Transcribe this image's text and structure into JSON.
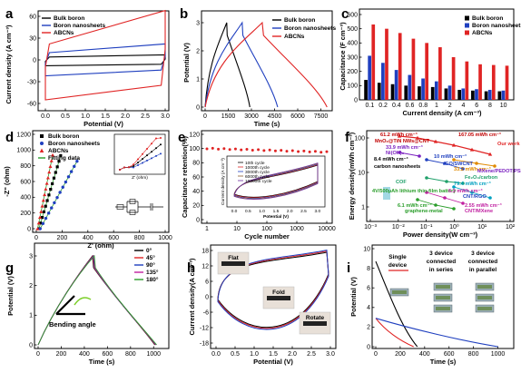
{
  "figure": {
    "panels": [
      "a",
      "b",
      "c",
      "d",
      "e",
      "f",
      "g",
      "h",
      "i"
    ]
  },
  "colors": {
    "bulk": "#000000",
    "nanosheets": "#1f3fbf",
    "abcn": "#e02424"
  },
  "chart_data": [
    {
      "panel": "a",
      "type": "line",
      "xlabel": "Potential (V)",
      "ylabel": "Current density (A cm⁻³)",
      "xlim": [
        0,
        3.0
      ],
      "ylim": [
        -60,
        60
      ],
      "xticks": [
        "0.0",
        "0.5",
        "1.0",
        "1.5",
        "2.0",
        "2.5",
        "3.0"
      ],
      "yticks": [
        "-60",
        "-30",
        "0",
        "30",
        "60"
      ],
      "legend": [
        "Bulk boron",
        "Boron nanosheets",
        "ABCNs"
      ],
      "series": [
        {
          "name": "Bulk boron",
          "upper": [
            [
              0,
              -2
            ],
            [
              0.1,
              4
            ],
            [
              3.0,
              7
            ]
          ],
          "lower": [
            [
              3.0,
              1
            ],
            [
              2.9,
              -6
            ],
            [
              0,
              -8
            ]
          ]
        },
        {
          "name": "Boron nanosheets",
          "upper": [
            [
              0,
              -5
            ],
            [
              0.1,
              10
            ],
            [
              3.0,
              22
            ]
          ],
          "lower": [
            [
              3.0,
              5
            ],
            [
              2.9,
              -14
            ],
            [
              0,
              -22
            ]
          ]
        },
        {
          "name": "ABCNs",
          "upper": [
            [
              0,
              -10
            ],
            [
              0.1,
              22
            ],
            [
              3.0,
              68
            ]
          ],
          "lower": [
            [
              3.0,
              15
            ],
            [
              2.9,
              -35
            ],
            [
              0,
              -55
            ]
          ]
        }
      ]
    },
    {
      "panel": "b",
      "type": "line",
      "xlabel": "Time (s)",
      "ylabel": "Potential (V)",
      "xlim": [
        0,
        8000
      ],
      "ylim": [
        0,
        3.2
      ],
      "xticks": [
        "0",
        "1500",
        "3000",
        "4500",
        "6000",
        "7500"
      ],
      "yticks": [
        "0",
        "1",
        "2",
        "3"
      ],
      "legend": [
        "Bulk boron",
        "Boron nanosheets",
        "ABCNs"
      ],
      "series": [
        {
          "name": "Bulk boron",
          "peak": [
            1400,
            3.0
          ],
          "end": [
            2900,
            0
          ]
        },
        {
          "name": "Boron nanosheets",
          "peak": [
            2400,
            3.0
          ],
          "end": [
            4700,
            0
          ]
        },
        {
          "name": "ABCNs",
          "peak": [
            3700,
            3.0
          ],
          "end": [
            7900,
            0
          ]
        }
      ]
    },
    {
      "panel": "c",
      "type": "bar",
      "xlabel": "Current density (A cm⁻³)",
      "ylabel": "Capacitance (F cm⁻³)",
      "ylim": [
        0,
        600
      ],
      "yticks": [
        "0",
        "100",
        "200",
        "300",
        "400",
        "500",
        "600"
      ],
      "categories": [
        "0.1",
        "0.2",
        "0.4",
        "0.6",
        "0.8",
        "1",
        "2",
        "4",
        "6",
        "8",
        "10"
      ],
      "legend": [
        "Bulk boron",
        "Boron nanosheets",
        "ABCNs"
      ],
      "series": [
        {
          "name": "Bulk boron",
          "values": [
            140,
            120,
            110,
            100,
            95,
            90,
            80,
            70,
            65,
            60,
            60
          ]
        },
        {
          "name": "Boron nanosheets",
          "values": [
            310,
            260,
            210,
            175,
            150,
            130,
            100,
            80,
            75,
            70,
            65
          ]
        },
        {
          "name": "ABCNs",
          "values": [
            530,
            500,
            470,
            430,
            400,
            370,
            300,
            270,
            250,
            245,
            240
          ]
        }
      ]
    },
    {
      "panel": "d",
      "type": "scatter",
      "xlabel": "Z' (ohm)",
      "ylabel": "-Z\" (ohm)",
      "xlim": [
        0,
        1000
      ],
      "ylim": [
        0,
        1200
      ],
      "xticks": [
        "0",
        "200",
        "400",
        "600",
        "800",
        "1000"
      ],
      "yticks": [
        "0",
        "200",
        "400",
        "600",
        "800",
        "1000",
        "1200"
      ],
      "legend": [
        "Bulk boron",
        "Boron nanosheets",
        "ABCNs",
        "Fitting data"
      ],
      "inset_xlabel": "Z' (ohm)",
      "inset_ylabel": "-Z\" (ohm)"
    },
    {
      "panel": "e",
      "type": "line",
      "xlabel": "Cycle number",
      "ylabel": "Capacitance retention(%)",
      "xlim": [
        1,
        10000
      ],
      "ylim": [
        0,
        120
      ],
      "xscale": "log",
      "xticks": [
        "1",
        "10",
        "100",
        "1000",
        "10000"
      ],
      "yticks": [
        "0",
        "20",
        "40",
        "60",
        "80",
        "100",
        "120"
      ],
      "retention": [
        [
          1,
          100
        ],
        [
          10,
          98
        ],
        [
          100,
          97
        ],
        [
          1000,
          96
        ],
        [
          10000,
          95
        ]
      ],
      "inset_legend": [
        "10th cycle",
        "1000th cycle",
        "3000th cycle",
        "6000th cycle",
        "10000th cycle"
      ],
      "inset_xlabel": "Potential (V)",
      "inset_ylabel": "Current density (A cm⁻³)",
      "inset_xticks": [
        "0.0",
        "0.5",
        "1.0",
        "1.5",
        "2.0",
        "2.5",
        "3.0"
      ]
    },
    {
      "panel": "f",
      "type": "scatter",
      "xlabel": "Power density(W cm⁻³)",
      "ylabel": "Energy density(mWh cm⁻³)",
      "xscale": "log",
      "yscale": "log",
      "xticks": [
        "10⁻³",
        "10⁻²",
        "10⁻¹",
        "10⁰",
        "10¹",
        "10²"
      ],
      "yticks": [
        "1",
        "10",
        "100"
      ],
      "annotations": [
        "61.2 mWh cm⁻³",
        "167.05 mWh cm⁻³",
        "Our work",
        "MnO₂@TiN NWs@CNT",
        "33.9 mWh cm⁻³",
        "Ni(OH)₂",
        "8.4 mWh cm⁻³",
        "10 mWh cm⁻³",
        "rGO/SWCNT",
        "33.2 mWh cm⁻³",
        "MXene/PEDOT:PSS",
        "carbon nanosheets",
        "Fe₂O₃/carbon",
        "79.4 mWh cm⁻³",
        "COF",
        "4V/500μAh lithium thin-film battery",
        "6.3 mWh cm⁻³",
        "CNT/RGO",
        "6.1 mWh cm⁻³",
        "graphene-metal",
        "2.55 mWh cm⁻³",
        "CNT/MXene"
      ]
    },
    {
      "panel": "g",
      "type": "line",
      "xlabel": "Time (s)",
      "ylabel": "Potential (V)",
      "xlim": [
        0,
        1100
      ],
      "ylim": [
        0,
        3.2
      ],
      "xticks": [
        "0",
        "200",
        "400",
        "600",
        "800",
        "1000"
      ],
      "yticks": [
        "0",
        "1",
        "2",
        "3"
      ],
      "legend": [
        "0°",
        "45°",
        "90°",
        "135°",
        "180°"
      ],
      "annotation": "Bending angle"
    },
    {
      "panel": "h",
      "type": "line",
      "xlabel": "Potential (V)",
      "ylabel": "Current density(A cm⁻³)",
      "xlim": [
        0,
        3.0
      ],
      "ylim": [
        -18,
        18
      ],
      "xticks": [
        "0.0",
        "0.5",
        "1.0",
        "1.5",
        "2.0",
        "2.5",
        "3.0"
      ],
      "yticks": [
        "-18",
        "-12",
        "-6",
        "0",
        "6",
        "12",
        "18"
      ],
      "photo_labels": [
        "Flat",
        "Fold",
        "Rotate"
      ]
    },
    {
      "panel": "i",
      "type": "line",
      "xlabel": "Time (s)",
      "ylabel": "Potential (V)",
      "xlim": [
        0,
        1100
      ],
      "ylim": [
        0,
        10
      ],
      "xticks": [
        "0",
        "200",
        "400",
        "600",
        "800",
        "1000"
      ],
      "yticks": [
        "0",
        "2",
        "4",
        "6",
        "8",
        "10"
      ],
      "labels": [
        "Single device",
        "3 device connected in series",
        "3 device connected in parallel"
      ]
    }
  ]
}
